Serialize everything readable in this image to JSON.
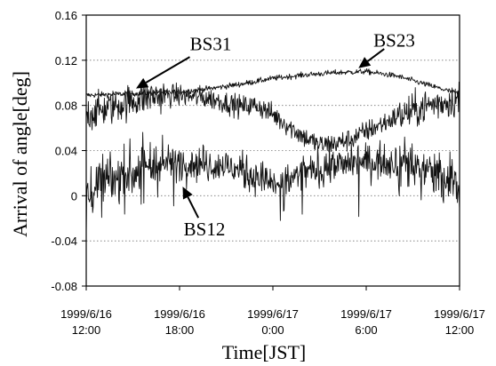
{
  "chart_data": {
    "type": "line",
    "title": "",
    "xlabel": "Time[JST]",
    "ylabel": "Arrival of angle[deg]",
    "ylim": [
      -0.08,
      0.16
    ],
    "xlim": [
      0,
      24
    ],
    "x_unit": "hours after 1999/6/16 12:00 JST",
    "yticks": [
      {
        "value": 0.16,
        "label": "0.16"
      },
      {
        "value": 0.12,
        "label": "0.12"
      },
      {
        "value": 0.08,
        "label": "0.08"
      },
      {
        "value": 0.04,
        "label": "0.04"
      },
      {
        "value": 0,
        "label": "0"
      },
      {
        "value": -0.04,
        "label": "-0.04"
      },
      {
        "value": -0.08,
        "label": "-0.08"
      }
    ],
    "xticks": [
      {
        "value": 0,
        "line1": "1999/6/16",
        "line2": "12:00"
      },
      {
        "value": 6,
        "line1": "1999/6/16",
        "line2": "18:00"
      },
      {
        "value": 12,
        "line1": "1999/6/17",
        "line2": "0:00"
      },
      {
        "value": 18,
        "line1": "1999/6/17",
        "line2": "6:00"
      },
      {
        "value": 24,
        "line1": "1999/6/17",
        "line2": "12:00"
      }
    ],
    "grid": {
      "horizontal": true,
      "vertical": false,
      "style": "dotted"
    },
    "series": [
      {
        "name": "BS31",
        "noise": 0.002,
        "x": [
          0,
          2,
          4,
          6,
          8,
          10,
          12,
          14,
          16,
          18,
          20,
          22,
          24
        ],
        "y": [
          0.089,
          0.09,
          0.091,
          0.092,
          0.095,
          0.099,
          0.104,
          0.107,
          0.109,
          0.11,
          0.106,
          0.098,
          0.09
        ],
        "annotation": {
          "text": "BS31",
          "arrow_to": [
            3.2,
            0.095
          ],
          "label_at": [
            8.0,
            0.129
          ]
        }
      },
      {
        "name": "BS23",
        "noise": 0.008,
        "x": [
          0,
          2,
          4,
          6,
          8,
          10,
          11,
          12,
          13,
          14,
          15,
          16,
          17,
          18,
          20,
          22,
          24
        ],
        "y": [
          0.072,
          0.08,
          0.088,
          0.089,
          0.086,
          0.079,
          0.08,
          0.072,
          0.062,
          0.052,
          0.045,
          0.046,
          0.05,
          0.057,
          0.07,
          0.08,
          0.086
        ],
        "annotation": {
          "text": "BS23",
          "arrow_to": [
            17.5,
            0.113
          ],
          "label_at": [
            19.8,
            0.132
          ]
        }
      },
      {
        "name": "BS12",
        "noise": 0.013,
        "x": [
          0,
          2,
          3,
          4,
          6,
          8,
          9,
          10,
          11,
          12,
          13,
          14,
          16,
          18,
          20,
          21,
          22,
          23,
          24
        ],
        "y": [
          0.006,
          0.016,
          0.021,
          0.026,
          0.03,
          0.028,
          0.026,
          0.022,
          0.017,
          0.01,
          0.014,
          0.02,
          0.027,
          0.03,
          0.031,
          0.029,
          0.022,
          0.012,
          0.012
        ],
        "annotation": {
          "text": "BS12",
          "arrow_to": [
            6.2,
            0.008
          ],
          "label_at": [
            7.6,
            -0.035
          ]
        }
      }
    ]
  }
}
